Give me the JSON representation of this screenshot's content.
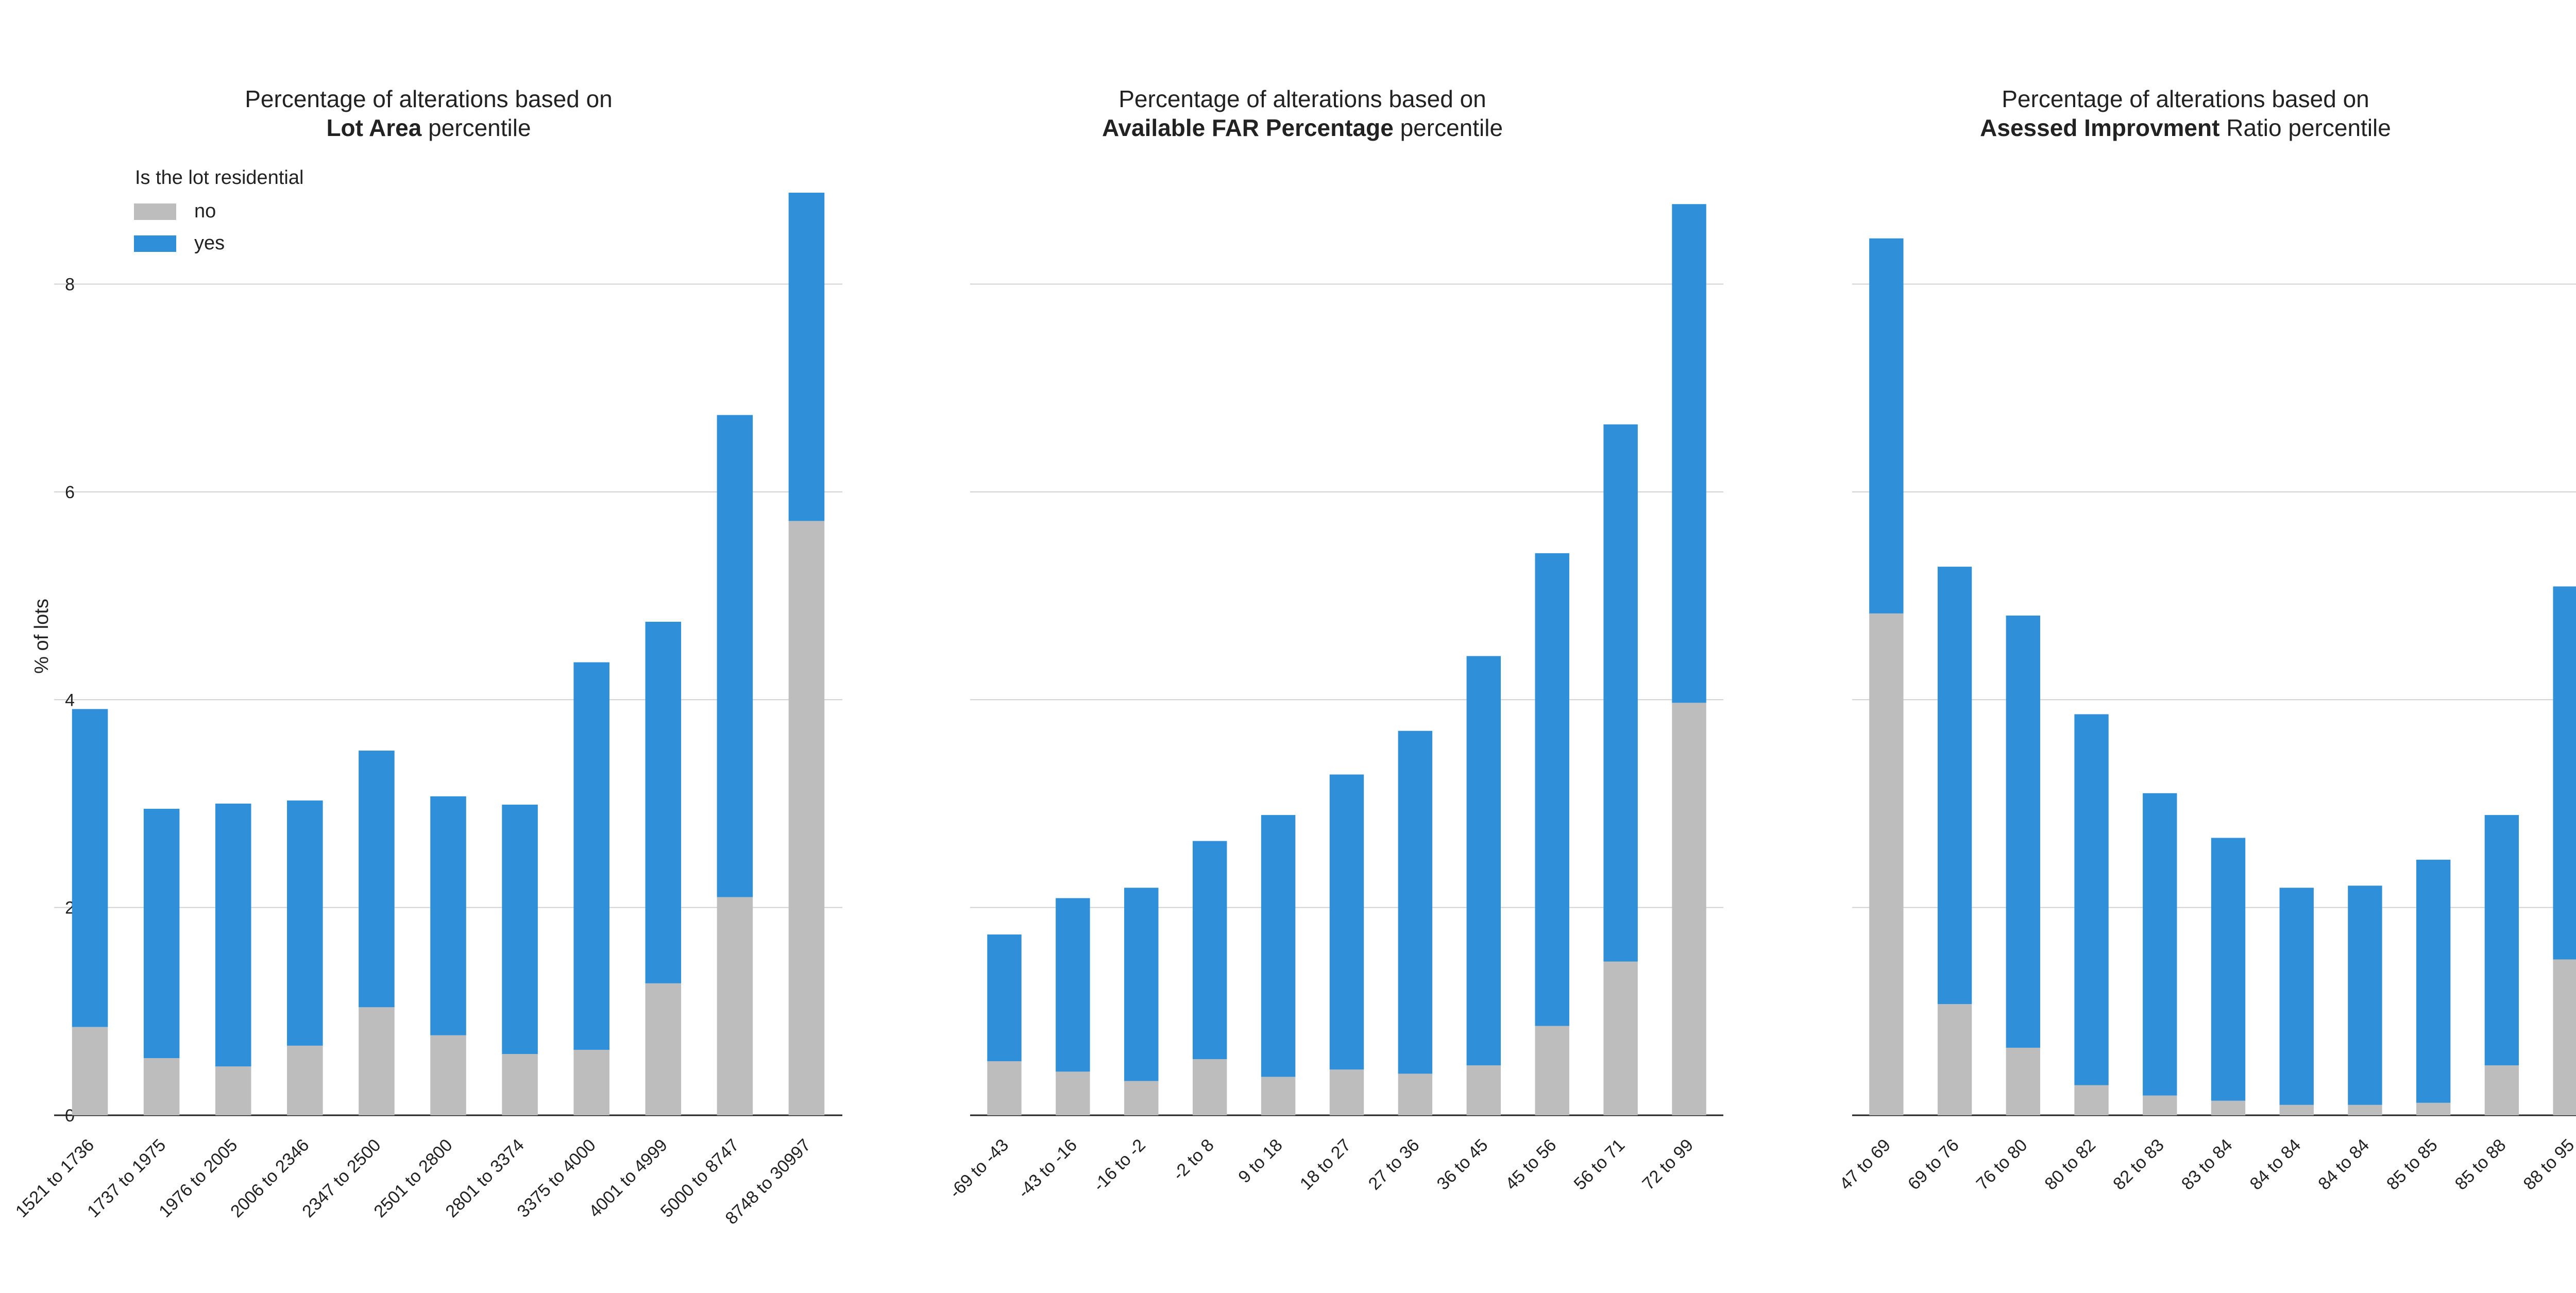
{
  "chart_data": [
    {
      "type": "bar",
      "stacked": true,
      "title_line1": "Percentage of alterations based on",
      "title_bold": "Lot Area",
      "title_suffix": " percentile",
      "xlabel": "",
      "ylabel": "% of lots",
      "ylim": [
        0,
        8.9
      ],
      "yticks": [
        0,
        2,
        4,
        6,
        8
      ],
      "grid": "horizontal",
      "categories": [
        "1521 to 1736",
        "1737 to 1975",
        "1976 to 2005",
        "2006 to 2346",
        "2347 to 2500",
        "2501 to 2800",
        "2801 to 3374",
        "3375 to 4000",
        "4001 to 4999",
        "5000 to 8747",
        "8748 to 30997"
      ],
      "series": [
        {
          "name": "no",
          "color": "#bdbdbd",
          "values": [
            0.85,
            0.55,
            0.47,
            0.67,
            1.04,
            0.77,
            0.59,
            0.63,
            1.27,
            2.1,
            5.72
          ]
        },
        {
          "name": "yes",
          "color": "#2f8fd8",
          "values": [
            3.06,
            2.4,
            2.53,
            2.36,
            2.47,
            2.3,
            2.4,
            3.73,
            3.48,
            4.64,
            3.16
          ]
        }
      ],
      "legend": {
        "title": "Is the lot residential",
        "placement": "top-left",
        "entries": [
          "no",
          "yes"
        ]
      }
    },
    {
      "type": "bar",
      "stacked": true,
      "title_line1": "Percentage of alterations based on",
      "title_bold": "Available FAR Percentage",
      "title_suffix": " percentile",
      "xlabel": "",
      "ylabel": "",
      "ylim": [
        0,
        8.9
      ],
      "yticks": [
        0,
        2,
        4,
        6,
        8
      ],
      "grid": "horizontal",
      "categories": [
        "-69 to -43",
        "-43 to -16",
        "-16 to -2",
        "-2 to 8",
        "9 to 18",
        "18 to 27",
        "27 to 36",
        "36 to 45",
        "45 to 56",
        "56 to 71",
        "72 to 99"
      ],
      "series": [
        {
          "name": "no",
          "color": "#bdbdbd",
          "values": [
            0.52,
            0.42,
            0.33,
            0.54,
            0.37,
            0.44,
            0.4,
            0.48,
            0.86,
            1.48,
            3.97
          ]
        },
        {
          "name": "yes",
          "color": "#2f8fd8",
          "values": [
            1.22,
            1.67,
            1.86,
            2.1,
            2.52,
            2.84,
            3.3,
            3.94,
            4.55,
            5.17,
            4.8
          ]
        }
      ]
    },
    {
      "type": "bar",
      "stacked": true,
      "title_line1": "Percentage of alterations based on",
      "title_bold": "Asessed Improvment",
      "title_suffix": " Ratio percentile",
      "xlabel": "",
      "ylabel": "",
      "ylim": [
        0,
        8.9
      ],
      "yticks": [
        0,
        2,
        4,
        6,
        8
      ],
      "grid": "horizontal",
      "categories": [
        "47 to 69",
        "69 to 76",
        "76 to 80",
        "80 to 82",
        "82 to 83",
        "83 to 84",
        "84 to 84",
        "84 to 84",
        "85 to 85",
        "85 to 88",
        "88 to 95"
      ],
      "series": [
        {
          "name": "no",
          "color": "#bdbdbd",
          "values": [
            4.83,
            1.07,
            0.65,
            0.29,
            0.19,
            0.14,
            0.1,
            0.1,
            0.12,
            0.48,
            1.5
          ]
        },
        {
          "name": "yes",
          "color": "#2f8fd8",
          "values": [
            3.61,
            4.21,
            4.16,
            3.57,
            2.91,
            2.53,
            2.09,
            2.11,
            2.34,
            2.41,
            3.59
          ]
        }
      ]
    }
  ]
}
